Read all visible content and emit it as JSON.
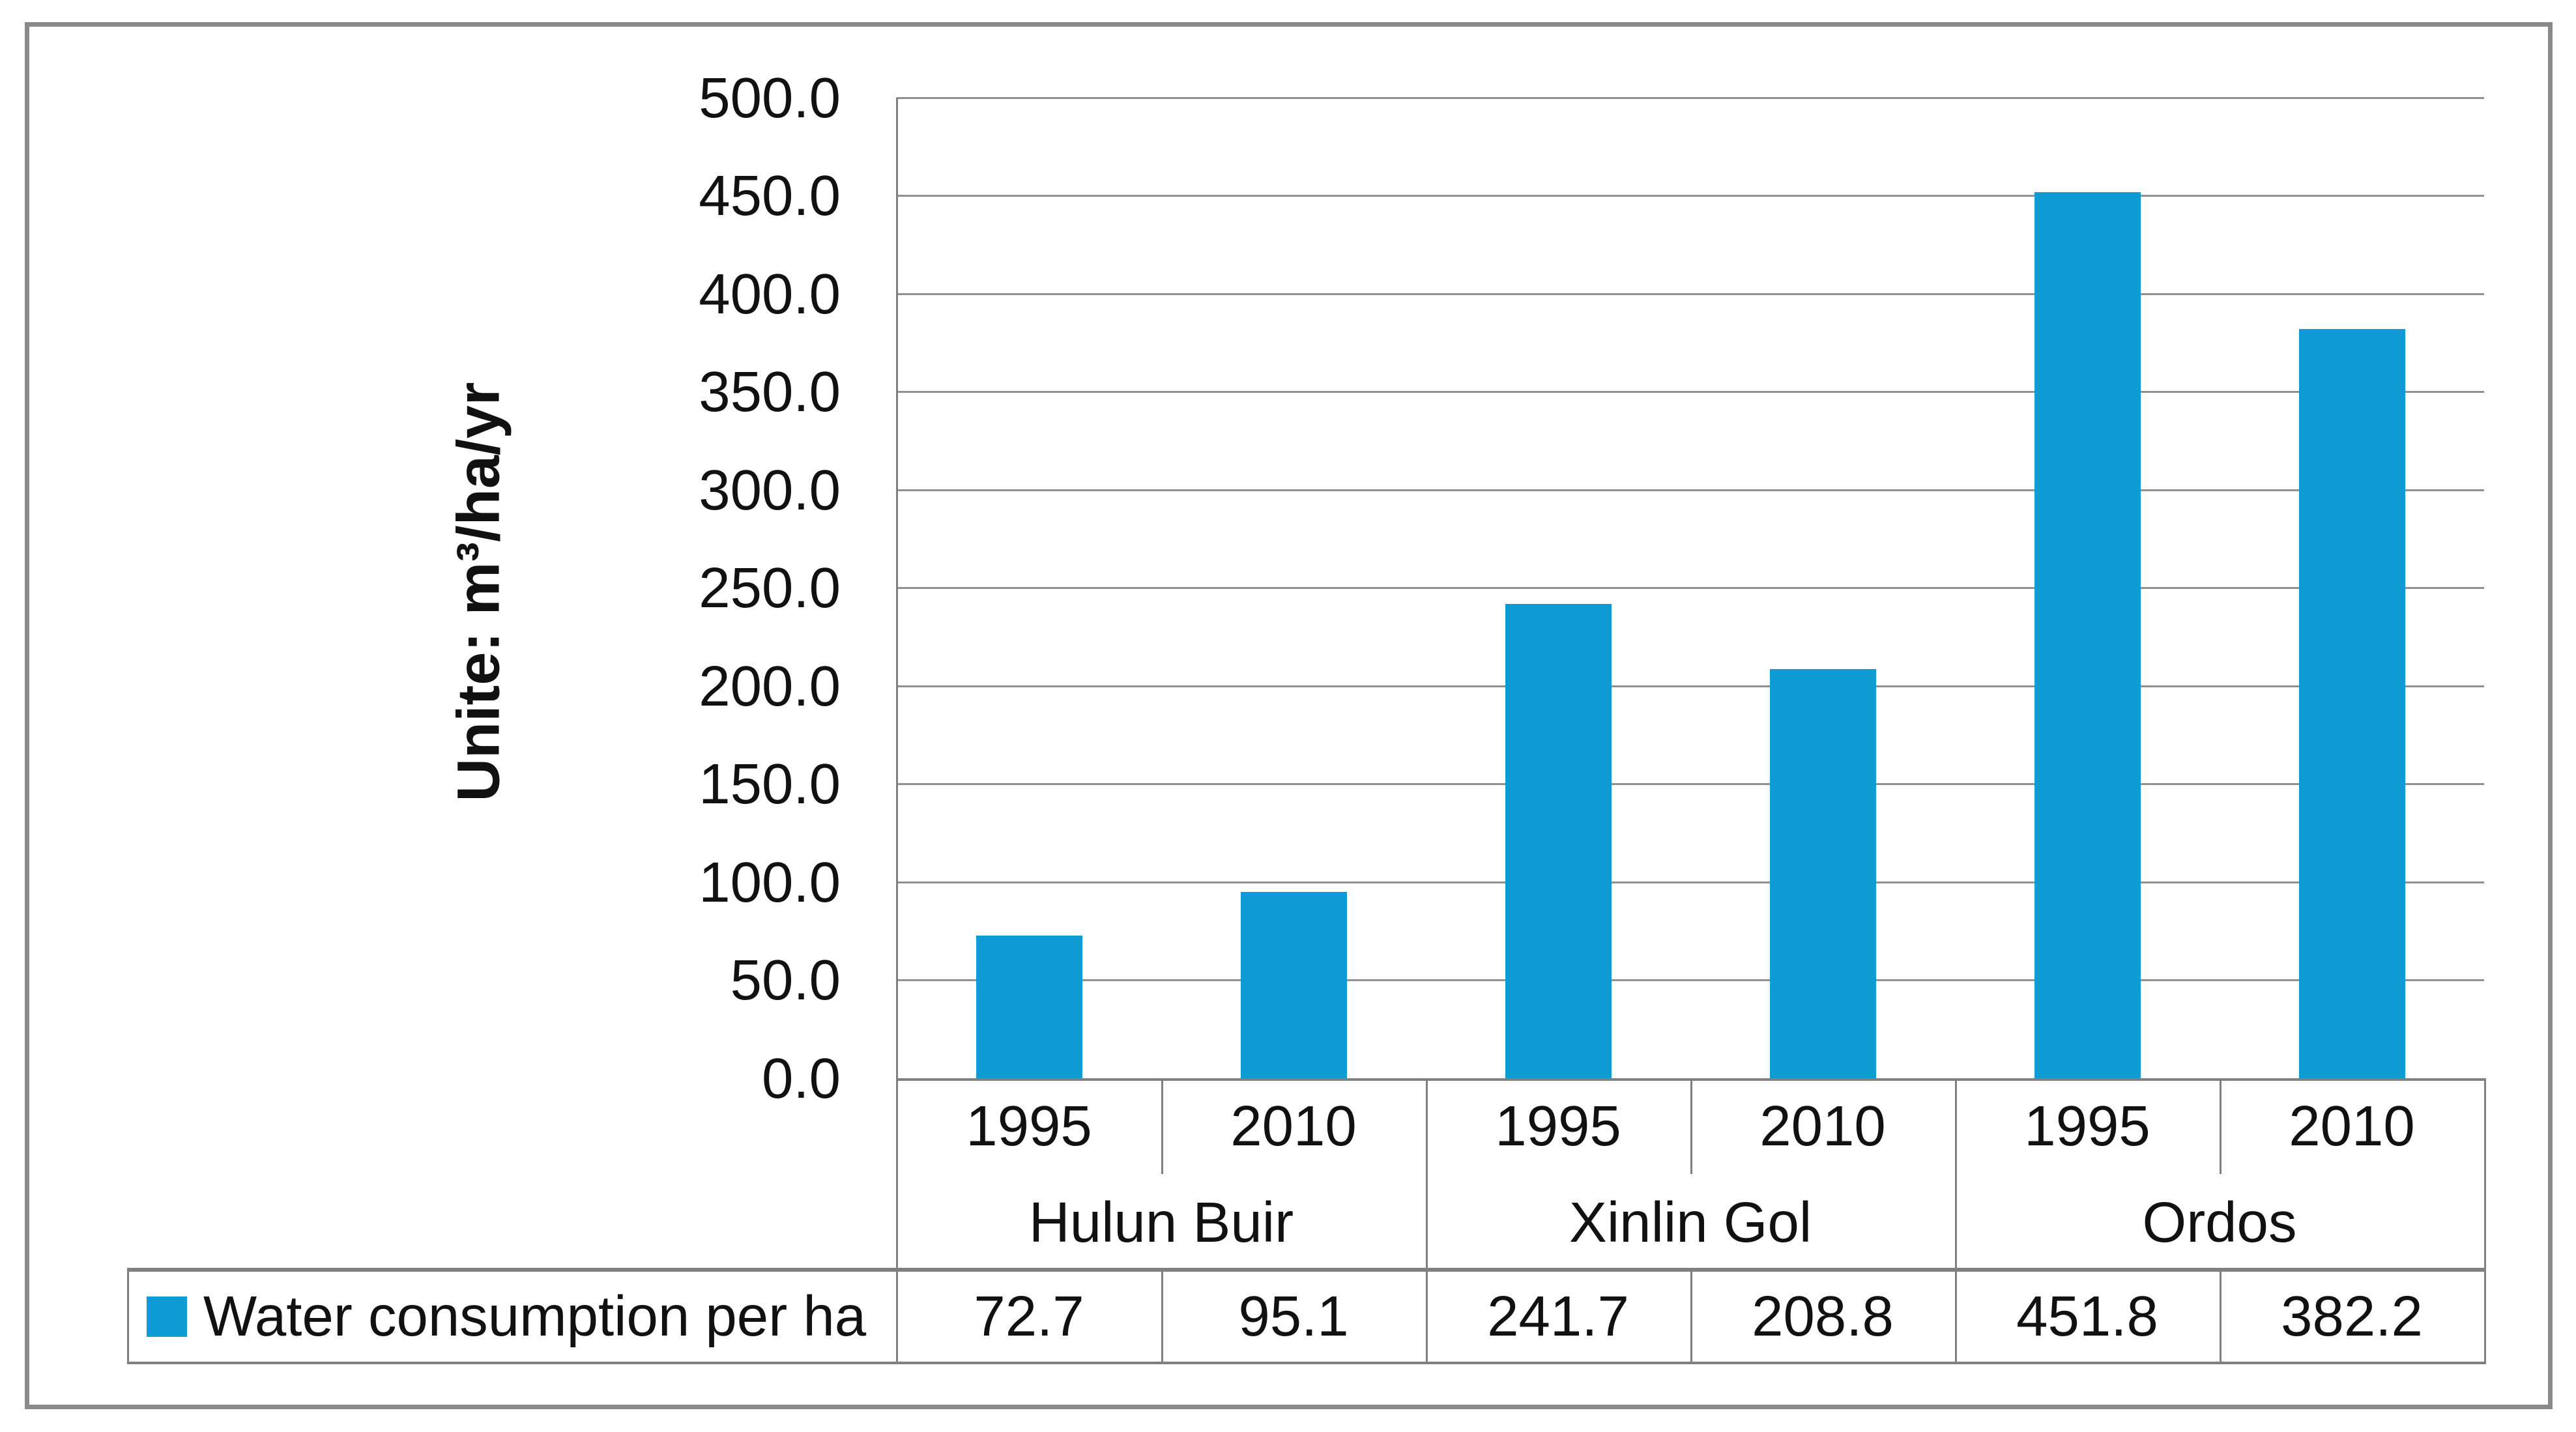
{
  "legend": {
    "label": "Water consumption per ha"
  },
  "y_axis": {
    "title": "Unite: m³/ha/yr"
  },
  "chart_data": {
    "type": "bar",
    "title": "",
    "xlabel": "",
    "ylabel": "Unite: m³/ha/yr",
    "ylim": [
      0,
      500
    ],
    "ytick_step": 50,
    "ytick_labels": [
      "500.0",
      "450.0",
      "400.0",
      "350.0",
      "300.0",
      "250.0",
      "200.0",
      "150.0",
      "100.0",
      "50.0",
      "0.0"
    ],
    "grid": true,
    "legend_position": "bottom table row, left cell",
    "groups": [
      "Hulun Buir",
      "Xinlin Gol",
      "Ordos"
    ],
    "categories": [
      "1995",
      "2010",
      "1995",
      "2010",
      "1995",
      "2010"
    ],
    "series": [
      {
        "name": "Water consumption per ha",
        "values": [
          72.7,
          95.1,
          241.7,
          208.8,
          451.8,
          382.2
        ]
      }
    ],
    "table_values": [
      "72.7",
      "95.1",
      "241.7",
      "208.8",
      "451.8",
      "382.2"
    ],
    "colors": {
      "bar": "#0f9cd5",
      "gridline": "#909090",
      "axis_line": "#808080",
      "outer_border": "#8a8a8a",
      "text": "#111111"
    }
  }
}
